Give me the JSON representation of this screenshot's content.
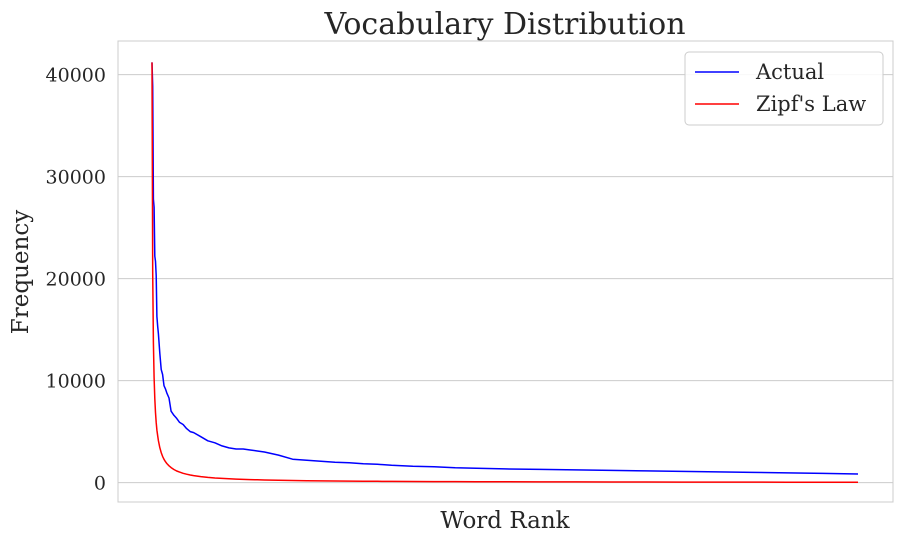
{
  "chart_data": {
    "type": "line",
    "title": "Vocabulary Distribution",
    "xlabel": "Word Rank",
    "ylabel": "Frequency",
    "x_ticks_shown": false,
    "ylim": [
      -1900,
      43300
    ],
    "yticks": [
      0,
      10000,
      20000,
      30000,
      40000
    ],
    "ytick_labels": [
      "0",
      "10000",
      "20000",
      "30000",
      "40000"
    ],
    "grid": "horizontal",
    "legend_position": "top-right",
    "x": [
      1,
      2,
      3,
      4,
      5,
      6,
      7,
      8,
      9,
      10,
      12,
      14,
      16,
      18,
      20,
      22,
      25,
      28,
      32,
      36,
      40,
      45,
      50,
      55,
      60,
      70,
      80,
      90,
      100,
      110,
      120,
      130,
      140,
      150,
      160,
      180,
      200,
      220,
      240,
      260,
      280,
      300,
      320,
      340,
      370,
      400,
      430,
      460,
      500,
      550,
      600,
      650,
      700,
      750,
      800,
      850,
      900,
      950,
      1000
    ],
    "series": [
      {
        "name": "Actual",
        "color": "#0000ff",
        "values": [
          41200,
          38900,
          27800,
          27000,
          22200,
          21700,
          20300,
          16300,
          15300,
          14600,
          12700,
          11100,
          10600,
          9500,
          9200,
          8800,
          8300,
          7000,
          6600,
          6300,
          5900,
          5700,
          5300,
          5000,
          4900,
          4500,
          4100,
          3900,
          3600,
          3400,
          3300,
          3300,
          3200,
          3100,
          3000,
          2700,
          2300,
          2200,
          2100,
          2000,
          1950,
          1850,
          1800,
          1700,
          1600,
          1550,
          1450,
          1400,
          1350,
          1300,
          1250,
          1200,
          1150,
          1100,
          1050,
          1000,
          950,
          900,
          850
        ]
      },
      {
        "name": "Zipf's Law",
        "color": "#ff0000",
        "values": [
          41200,
          20600,
          13733,
          10300,
          8240,
          6867,
          5886,
          5150,
          4578,
          4120,
          3433,
          2943,
          2575,
          2289,
          2060,
          1873,
          1648,
          1471,
          1288,
          1144,
          1030,
          916,
          824,
          749,
          687,
          589,
          515,
          458,
          412,
          375,
          343,
          317,
          294,
          275,
          258,
          229,
          206,
          187,
          172,
          158,
          147,
          137,
          129,
          121,
          111,
          103,
          96,
          90,
          82,
          75,
          69,
          63,
          59,
          55,
          52,
          48,
          46,
          43,
          41
        ]
      }
    ]
  }
}
